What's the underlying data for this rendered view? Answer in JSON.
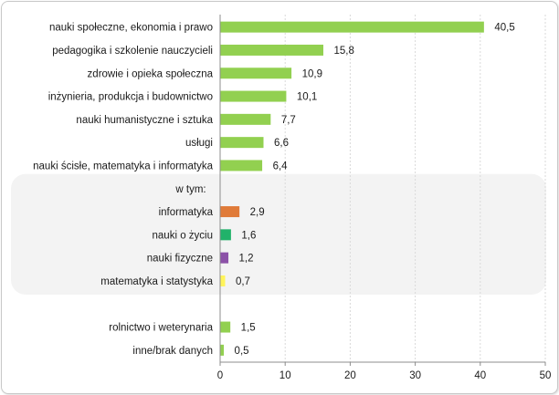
{
  "chart_data": {
    "type": "bar",
    "orientation": "horizontal",
    "title": "",
    "xlabel": "",
    "ylabel": "",
    "xlim": [
      0,
      50
    ],
    "xticks": [
      0,
      10,
      20,
      30,
      40,
      50
    ],
    "grid": true,
    "subgroup_header": "w tym:",
    "subgroup_header_row": 7,
    "subgroup_rows": [
      8,
      9,
      10,
      11
    ],
    "blank_rows": [
      12
    ],
    "categories": [
      "nauki społeczne, ekonomia i prawo",
      "pedagogika i szkolenie nauczycieli",
      "zdrowie i opieka społeczna",
      "inżynieria, produkcja i budownictwo",
      "nauki humanistyczne i sztuka",
      "usługi",
      "nauki ścisłe, matematyka i informatyka",
      "w tym:",
      "informatyka",
      "nauki o życiu",
      "nauki fizyczne",
      "matematyka i statystyka",
      "",
      "rolnictwo i weterynaria",
      "inne/brak danych"
    ],
    "values": [
      40.5,
      15.8,
      10.9,
      10.1,
      7.7,
      6.6,
      6.4,
      null,
      2.9,
      1.6,
      1.2,
      0.7,
      null,
      1.5,
      0.5
    ],
    "value_labels": [
      "40,5",
      "15,8",
      "10,9",
      "10,1",
      "7,7",
      "6,6",
      "6,4",
      "",
      "2,9",
      "1,6",
      "1,2",
      "0,7",
      "",
      "1,5",
      "0,5"
    ],
    "colors": [
      "#92d050",
      "#92d050",
      "#92d050",
      "#92d050",
      "#92d050",
      "#92d050",
      "#92d050",
      "",
      "#e07b39",
      "#21b26a",
      "#8c52a8",
      "#fff45a",
      "",
      "#92d050",
      "#92d050"
    ]
  }
}
